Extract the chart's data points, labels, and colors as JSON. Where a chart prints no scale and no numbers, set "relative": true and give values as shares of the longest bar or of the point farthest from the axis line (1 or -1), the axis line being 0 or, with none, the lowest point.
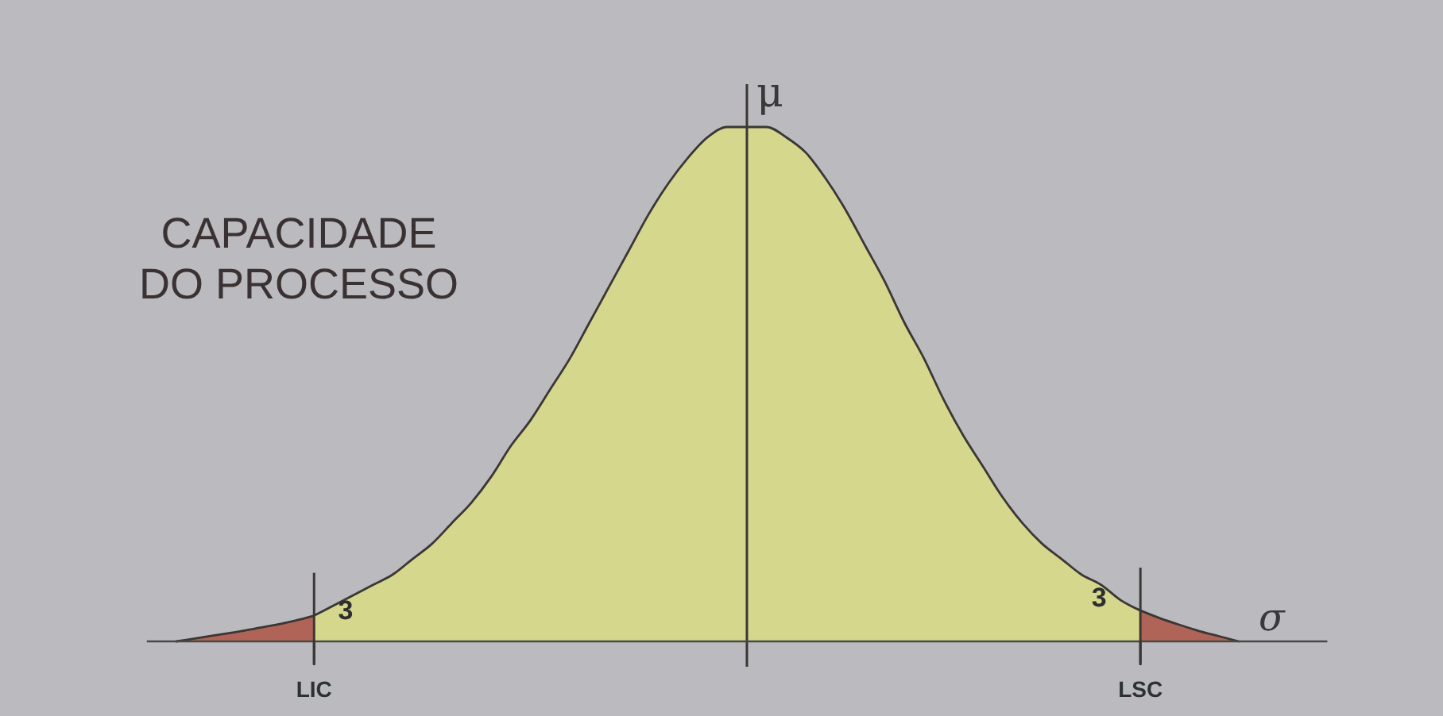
{
  "chart_data": {
    "type": "area",
    "title": "CAPACIDADE DO PROCESSO",
    "relative": true,
    "xlabel": "σ",
    "categories": [
      null,
      null,
      null,
      null,
      null,
      null,
      null,
      null,
      "LIC",
      null,
      null,
      null,
      null,
      null,
      null,
      null,
      null,
      null,
      null,
      null,
      null,
      null,
      null,
      null,
      null,
      null,
      null,
      null,
      null,
      null,
      null,
      null,
      null,
      null,
      null,
      null,
      null,
      null,
      null,
      null,
      null,
      null,
      null,
      null,
      null,
      null,
      null,
      null,
      null,
      null,
      "LSC",
      null,
      null,
      null,
      null,
      null,
      null,
      null,
      null,
      null
    ],
    "series": [
      {
        "color": "#d5d78c",
        "values": [
          null,
          null,
          null,
          null,
          null,
          null,
          null,
          null,
          0.05,
          0.07,
          0.09,
          0.11,
          0.13,
          0.16,
          0.19,
          0.23,
          0.27,
          0.32,
          0.38,
          0.43,
          0.49,
          0.55,
          0.62,
          0.69,
          0.76,
          0.83,
          0.89,
          0.94,
          0.98,
          1,
          1,
          1,
          0.98,
          0.95,
          0.9,
          0.84,
          0.77,
          0.7,
          0.62,
          0.55,
          0.47,
          0.4,
          0.34,
          0.28,
          0.23,
          0.19,
          0.16,
          0.13,
          0.11,
          0.08,
          0.06,
          null,
          null,
          null,
          null,
          null,
          null,
          null,
          null,
          null
        ]
      },
      {
        "color": "#b06458",
        "values": [
          null,
          0,
          0.006,
          0.012,
          0.018,
          0.025,
          0.032,
          0.04,
          0.05,
          null,
          null,
          null,
          null,
          null,
          null,
          null,
          null,
          null,
          null,
          null,
          null,
          null,
          null,
          null,
          null,
          null,
          null,
          null,
          null,
          null,
          null,
          null,
          null,
          null,
          null,
          null,
          null,
          null,
          null,
          null,
          null,
          null,
          null,
          null,
          null,
          null,
          null,
          null,
          null,
          null,
          0.06,
          0.045,
          0.032,
          0.02,
          0.01,
          0,
          null,
          null,
          null,
          null
        ]
      }
    ],
    "ref_lines": [
      {
        "axis": "x",
        "value": "LIC"
      },
      {
        "axis": "x",
        "value": "LSC"
      }
    ],
    "annotations": [
      "3",
      "3",
      "μ"
    ]
  }
}
